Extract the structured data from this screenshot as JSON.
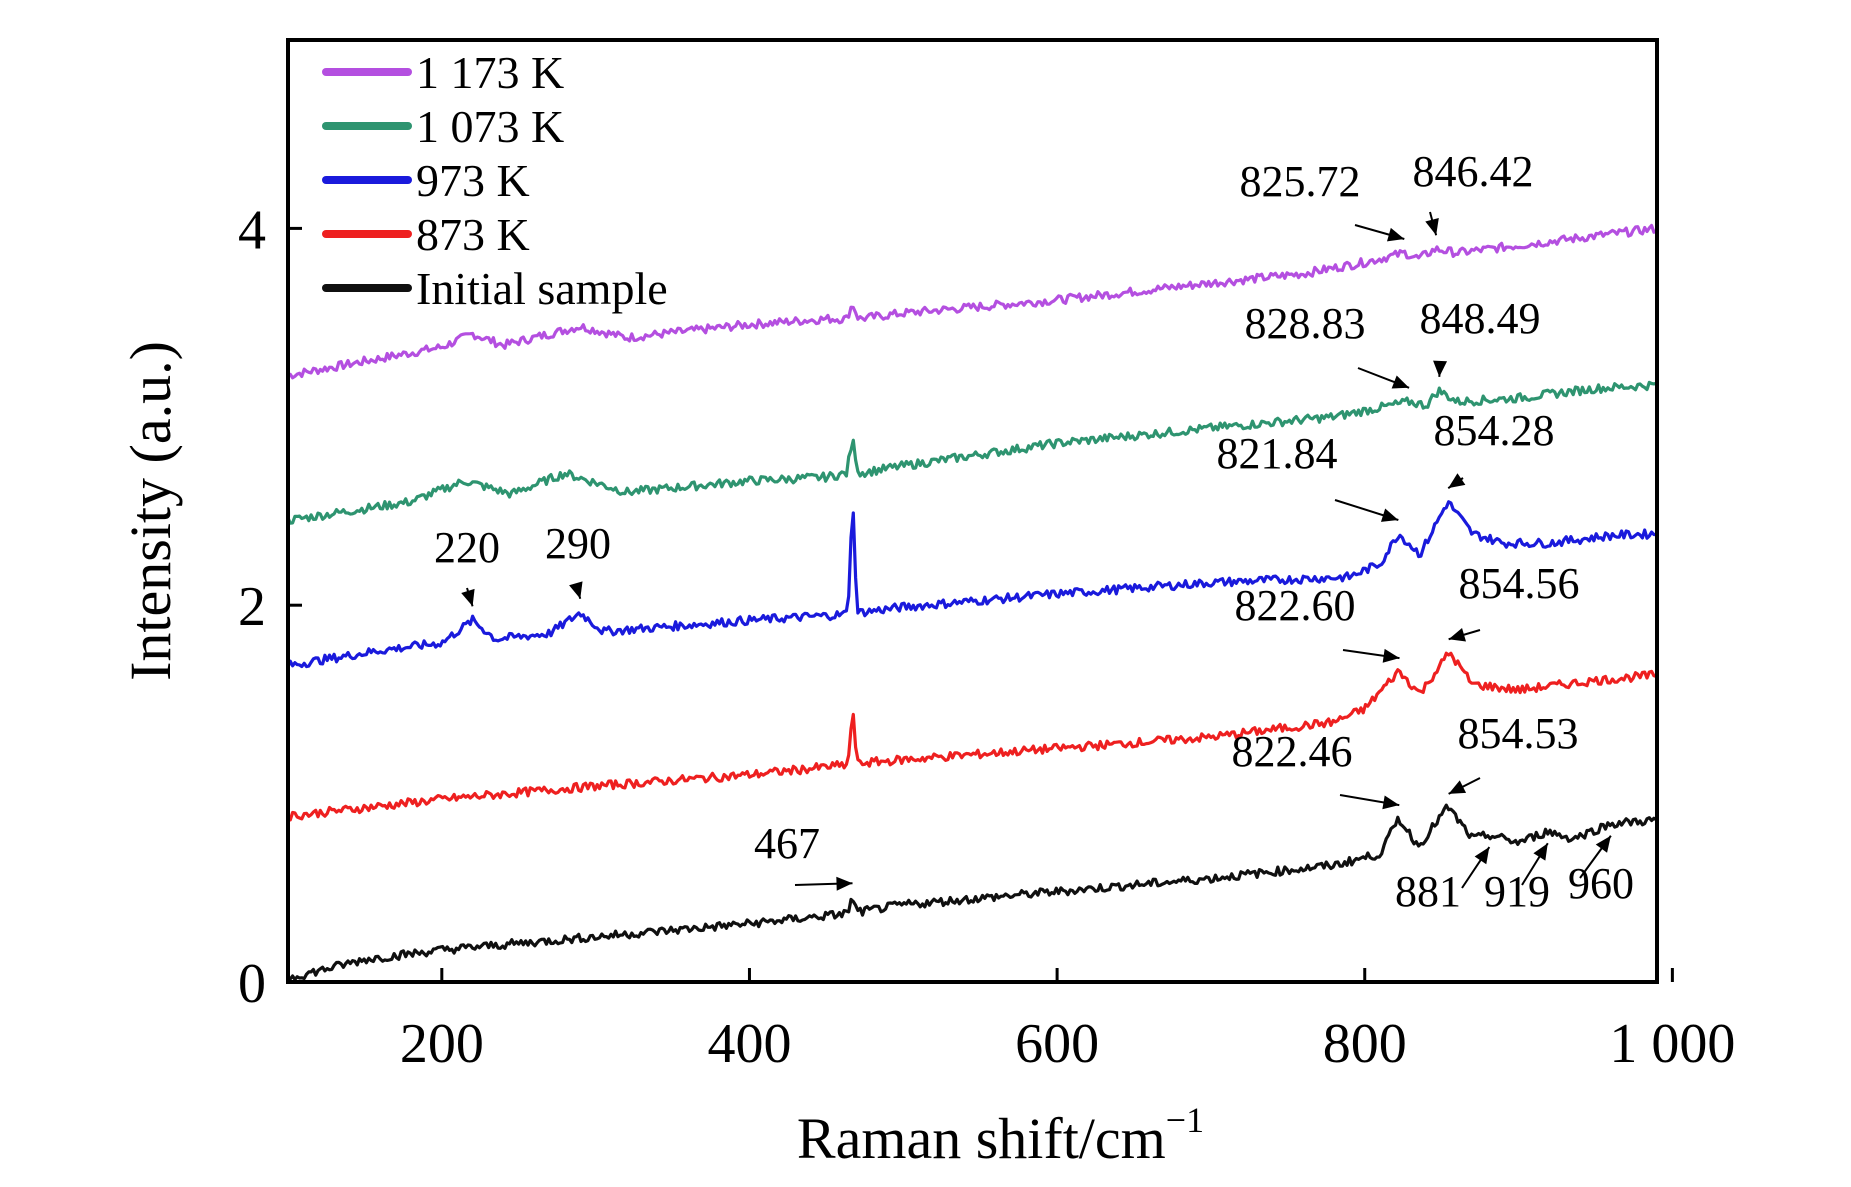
{
  "chart_data": {
    "type": "line",
    "xlabel": "Raman shift/cm",
    "xlabel_sup": "−1",
    "ylabel": "Intensity (a.u.)",
    "xlim": [
      100,
      990
    ],
    "ylim": [
      0,
      5
    ],
    "x_ticks": [
      {
        "value": 200,
        "label": "200"
      },
      {
        "value": 400,
        "label": "400"
      },
      {
        "value": 600,
        "label": "600"
      },
      {
        "value": 800,
        "label": "800"
      },
      {
        "value": 1000,
        "label": "1 000"
      }
    ],
    "y_ticks": [
      {
        "value": 0,
        "label": "0"
      },
      {
        "value": 2,
        "label": "2"
      },
      {
        "value": 4,
        "label": "4"
      }
    ],
    "grid": false,
    "legend_position": "top-left",
    "series": [
      {
        "name": "1 173 K",
        "color": "#b44fe0",
        "points": [
          [
            100,
            3.22
          ],
          [
            200,
            3.37
          ],
          [
            220,
            3.44
          ],
          [
            240,
            3.38
          ],
          [
            290,
            3.48
          ],
          [
            320,
            3.42
          ],
          [
            400,
            3.49
          ],
          [
            450,
            3.52
          ],
          [
            463,
            3.52
          ],
          [
            467,
            3.6
          ],
          [
            471,
            3.52
          ],
          [
            500,
            3.55
          ],
          [
            600,
            3.62
          ],
          [
            700,
            3.71
          ],
          [
            760,
            3.76
          ],
          [
            800,
            3.82
          ],
          [
            826,
            3.87
          ],
          [
            835,
            3.84
          ],
          [
            846,
            3.89
          ],
          [
            860,
            3.87
          ],
          [
            900,
            3.91
          ],
          [
            950,
            3.96
          ],
          [
            990,
            4.0
          ]
        ],
        "peaks": [
          {
            "x": 825.72,
            "label": "825.72"
          },
          {
            "x": 846.42,
            "label": "846.42"
          }
        ]
      },
      {
        "name": "1 073 K",
        "color": "#2e9470",
        "points": [
          [
            100,
            2.45
          ],
          [
            180,
            2.55
          ],
          [
            215,
            2.66
          ],
          [
            245,
            2.59
          ],
          [
            280,
            2.7
          ],
          [
            320,
            2.6
          ],
          [
            400,
            2.66
          ],
          [
            450,
            2.68
          ],
          [
            463,
            2.7
          ],
          [
            467,
            2.88
          ],
          [
            471,
            2.7
          ],
          [
            500,
            2.74
          ],
          [
            600,
            2.86
          ],
          [
            700,
            2.94
          ],
          [
            780,
            3.0
          ],
          [
            829,
            3.08
          ],
          [
            840,
            3.06
          ],
          [
            848,
            3.14
          ],
          [
            860,
            3.08
          ],
          [
            900,
            3.1
          ],
          [
            950,
            3.15
          ],
          [
            990,
            3.17
          ]
        ],
        "peaks": [
          {
            "x": 828.83,
            "label": "828.83"
          },
          {
            "x": 848.49,
            "label": "848.49"
          }
        ]
      },
      {
        "name": "973 K",
        "color": "#1a1adc",
        "points": [
          [
            100,
            1.68
          ],
          [
            160,
            1.76
          ],
          [
            200,
            1.8
          ],
          [
            220,
            1.92
          ],
          [
            235,
            1.82
          ],
          [
            270,
            1.85
          ],
          [
            290,
            1.96
          ],
          [
            305,
            1.86
          ],
          [
            400,
            1.92
          ],
          [
            460,
            1.95
          ],
          [
            464,
            1.96
          ],
          [
            467,
            2.58
          ],
          [
            470,
            1.96
          ],
          [
            500,
            1.99
          ],
          [
            600,
            2.06
          ],
          [
            700,
            2.12
          ],
          [
            790,
            2.15
          ],
          [
            810,
            2.22
          ],
          [
            822,
            2.38
          ],
          [
            836,
            2.27
          ],
          [
            854,
            2.55
          ],
          [
            870,
            2.38
          ],
          [
            890,
            2.33
          ],
          [
            920,
            2.33
          ],
          [
            960,
            2.37
          ],
          [
            990,
            2.38
          ]
        ],
        "peaks": [
          {
            "x": 220,
            "label": "220"
          },
          {
            "x": 290,
            "label": "290"
          },
          {
            "x": 821.84,
            "label": "821.84"
          },
          {
            "x": 854.28,
            "label": "854.28"
          }
        ]
      },
      {
        "name": "873 K",
        "color": "#ee2020",
        "points": [
          [
            100,
            0.88
          ],
          [
            200,
            0.97
          ],
          [
            300,
            1.04
          ],
          [
            400,
            1.1
          ],
          [
            460,
            1.15
          ],
          [
            464,
            1.15
          ],
          [
            467,
            1.45
          ],
          [
            470,
            1.16
          ],
          [
            500,
            1.18
          ],
          [
            600,
            1.24
          ],
          [
            700,
            1.3
          ],
          [
            780,
            1.38
          ],
          [
            800,
            1.45
          ],
          [
            822,
            1.65
          ],
          [
            836,
            1.53
          ],
          [
            855,
            1.75
          ],
          [
            870,
            1.58
          ],
          [
            900,
            1.55
          ],
          [
            950,
            1.6
          ],
          [
            990,
            1.63
          ]
        ],
        "peaks": [
          {
            "x": 822.6,
            "label": "822.60"
          },
          {
            "x": 854.56,
            "label": "854.56"
          }
        ]
      },
      {
        "name": "Initial sample",
        "color": "#101010",
        "points": [
          [
            100,
            0.02
          ],
          [
            150,
            0.12
          ],
          [
            200,
            0.17
          ],
          [
            300,
            0.24
          ],
          [
            400,
            0.31
          ],
          [
            460,
            0.36
          ],
          [
            464,
            0.37
          ],
          [
            467,
            0.45
          ],
          [
            470,
            0.37
          ],
          [
            500,
            0.41
          ],
          [
            600,
            0.48
          ],
          [
            700,
            0.55
          ],
          [
            780,
            0.62
          ],
          [
            810,
            0.68
          ],
          [
            822,
            0.87
          ],
          [
            835,
            0.72
          ],
          [
            854,
            0.93
          ],
          [
            870,
            0.76
          ],
          [
            881,
            0.78
          ],
          [
            900,
            0.74
          ],
          [
            919,
            0.8
          ],
          [
            935,
            0.76
          ],
          [
            960,
            0.84
          ],
          [
            990,
            0.86
          ]
        ],
        "peaks": [
          {
            "x": 467,
            "label": "467"
          },
          {
            "x": 822.46,
            "label": "822.46"
          },
          {
            "x": 854.53,
            "label": "854.53"
          },
          {
            "x": 881,
            "label": "881"
          },
          {
            "x": 919,
            "label": "919"
          },
          {
            "x": 960,
            "label": "960"
          }
        ]
      }
    ]
  }
}
